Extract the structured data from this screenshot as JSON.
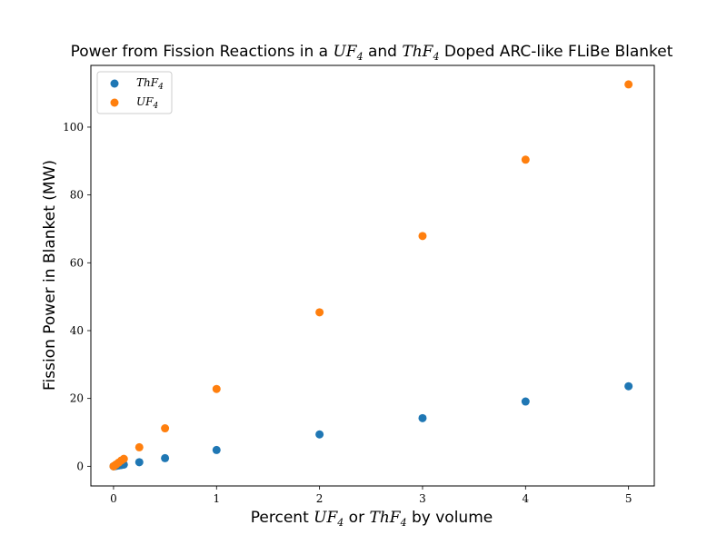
{
  "chart_data": {
    "type": "scatter",
    "title": {
      "prefix": "Power from Fission Reactions in a ",
      "math1": "UF",
      "sub1": "4",
      "middle": " and ",
      "math2": "ThF",
      "sub2": "4",
      "suffix": " Doped ARC-like FLiBe Blanket"
    },
    "xlabel": {
      "prefix": "Percent ",
      "math1": "UF",
      "sub1": "4",
      "middle": " or ",
      "math2": "ThF",
      "sub2": "4",
      "suffix": " by volume"
    },
    "ylabel": "Fission Power in Blanket (MW)",
    "xlim": [
      -0.22,
      5.25
    ],
    "ylim": [
      -5.8,
      118.2
    ],
    "xticks": [
      0,
      1,
      2,
      3,
      4,
      5
    ],
    "yticks": [
      0,
      20,
      40,
      60,
      80,
      100
    ],
    "grid": false,
    "legend_position": "upper-left",
    "series": [
      {
        "name": "ThF4",
        "legend_base": "ThF",
        "legend_sub": "4",
        "color": "#1f77b4",
        "x": [
          0,
          0.01,
          0.025,
          0.05,
          0.075,
          0.1,
          0.25,
          0.5,
          1,
          2,
          3,
          4,
          5
        ],
        "y": [
          0.0,
          0.05,
          0.12,
          0.25,
          0.37,
          0.5,
          1.2,
          2.4,
          4.8,
          9.4,
          14.2,
          19.1,
          23.6
        ]
      },
      {
        "name": "UF4",
        "legend_base": "UF",
        "legend_sub": "4",
        "color": "#ff7f0e",
        "x": [
          0,
          0.01,
          0.025,
          0.05,
          0.075,
          0.1,
          0.25,
          0.5,
          1,
          2,
          3,
          4,
          5
        ],
        "y": [
          0.0,
          0.2,
          0.55,
          1.1,
          1.7,
          2.2,
          5.6,
          11.2,
          22.8,
          45.4,
          67.9,
          90.4,
          112.6
        ]
      }
    ]
  }
}
